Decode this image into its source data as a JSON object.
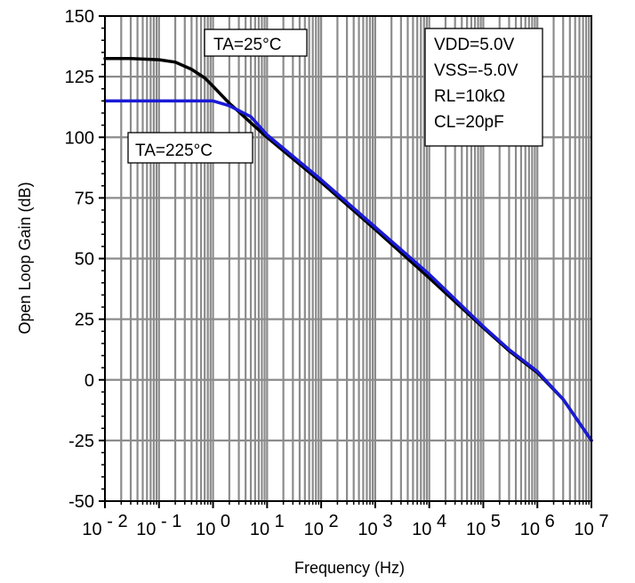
{
  "chart_data": {
    "type": "line",
    "title": "",
    "xlabel": "Frequency (Hz)",
    "ylabel": "Open Loop Gain (dB)",
    "xscale": "log",
    "xlim": [
      0.01,
      10000000
    ],
    "ylim": [
      -50,
      150
    ],
    "grid": true,
    "x_ticks": [
      {
        "base": "10",
        "exp": "-2",
        "value": 0.01
      },
      {
        "base": "10",
        "exp": "-1",
        "value": 0.1
      },
      {
        "base": "10",
        "exp": "0",
        "value": 1
      },
      {
        "base": "10",
        "exp": "1",
        "value": 10
      },
      {
        "base": "10",
        "exp": "2",
        "value": 100
      },
      {
        "base": "10",
        "exp": "3",
        "value": 1000
      },
      {
        "base": "10",
        "exp": "4",
        "value": 10000
      },
      {
        "base": "10",
        "exp": "5",
        "value": 100000
      },
      {
        "base": "10",
        "exp": "6",
        "value": 1000000
      },
      {
        "base": "10",
        "exp": "7",
        "value": 10000000
      }
    ],
    "y_ticks": [
      "150",
      "125",
      "100",
      "75",
      "50",
      "25",
      "0",
      "-25",
      "-50"
    ],
    "y_tick_values": [
      150,
      125,
      100,
      75,
      50,
      25,
      0,
      -25,
      -50
    ],
    "series": [
      {
        "color": "#000000",
        "x": [
          0.01,
          0.03,
          0.1,
          0.2,
          0.4,
          0.7,
          1,
          2,
          3,
          5,
          10,
          100,
          1000,
          10000,
          100000,
          300000,
          1000000,
          3000000,
          10000000
        ],
        "y": [
          132.5,
          132.5,
          132,
          131,
          128,
          124.5,
          121,
          114,
          110.5,
          106,
          100,
          81.5,
          62,
          42,
          21.5,
          12,
          3,
          -8,
          -25
        ]
      },
      {
        "color": "#1a1ad6",
        "x": [
          0.01,
          0.1,
          0.5,
          1,
          2,
          5,
          10,
          100,
          1000,
          10000,
          100000,
          300000,
          1000000,
          3000000,
          10000000
        ],
        "y": [
          115,
          115,
          115,
          115,
          113,
          108.5,
          101,
          82.5,
          63,
          43.5,
          22,
          12.5,
          3.5,
          -8,
          -25
        ]
      }
    ],
    "annotations": [
      {
        "id": "ta25",
        "text": "TA=25°C"
      },
      {
        "id": "ta225",
        "text": "TA=225°C"
      },
      {
        "id": "conditions",
        "lines": [
          "VDD=5.0V",
          "VSS=-5.0V",
          "RL=10kΩ",
          "CL=20pF"
        ]
      }
    ]
  }
}
